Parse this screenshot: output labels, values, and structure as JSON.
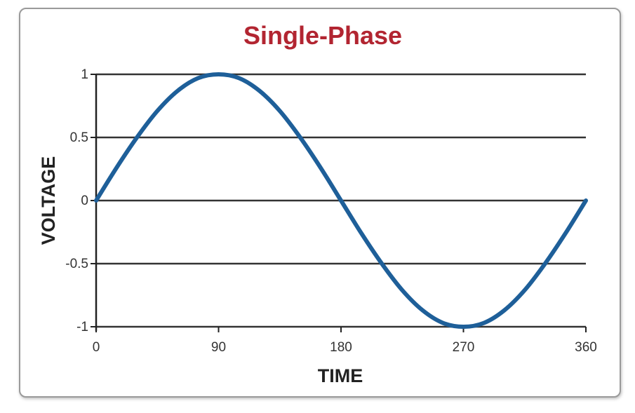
{
  "colors": {
    "title": "#b22531",
    "series": "#1e5f99",
    "grid": "#333333",
    "axis": "#222222"
  },
  "chart_data": {
    "type": "line",
    "title": "Single-Phase",
    "xlabel": "TIME",
    "ylabel": "VOLTAGE",
    "xlim": [
      0,
      360
    ],
    "ylim": [
      -1,
      1
    ],
    "x_ticks": [
      "0",
      "90",
      "180",
      "270",
      "360"
    ],
    "x_tick_values": [
      0,
      90,
      180,
      270,
      360
    ],
    "y_ticks": [
      "1",
      "0.5",
      "0",
      "-0.5",
      "-1"
    ],
    "y_tick_values": [
      1,
      0.5,
      0,
      -0.5,
      -1
    ],
    "grid": "horizontal",
    "series": [
      {
        "x": [
          0,
          15,
          30,
          45,
          60,
          75,
          90,
          105,
          120,
          135,
          150,
          165,
          180,
          195,
          210,
          225,
          240,
          255,
          270,
          285,
          300,
          315,
          330,
          345,
          360
        ],
        "y": [
          0,
          0.26,
          0.5,
          0.71,
          0.87,
          0.97,
          1,
          0.97,
          0.87,
          0.71,
          0.5,
          0.26,
          0,
          -0.26,
          -0.5,
          -0.71,
          -0.87,
          -0.97,
          -1,
          -0.97,
          -0.87,
          -0.71,
          -0.5,
          -0.26,
          0
        ]
      }
    ]
  }
}
